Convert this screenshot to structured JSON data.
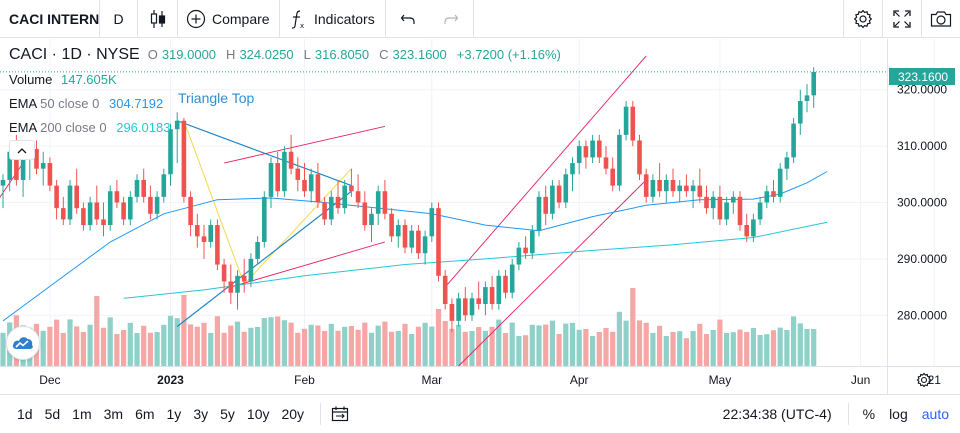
{
  "toolbar": {
    "symbol": "CACI INTERN",
    "interval": "D",
    "compare_label": "Compare",
    "indicators_label": "Indicators"
  },
  "legend": {
    "title": "CACI · 1D · NYSE",
    "open_k": "O",
    "open": "319.0000",
    "high_k": "H",
    "high": "324.0250",
    "low_k": "L",
    "low": "316.8050",
    "close_k": "C",
    "close": "323.1600",
    "change": "+3.7200 (+1.16%)",
    "volume_name": "Volume",
    "volume_value": "147.605K",
    "ema50_name": "EMA",
    "ema50_params": "50 close 0",
    "ema50_value": "304.7192",
    "ema200_name": "EMA",
    "ema200_params": "200 close 0",
    "ema200_value": "296.0183"
  },
  "pattern_label": "Triangle Top",
  "last_price_tag": "323.1600",
  "colors": {
    "up": "#26a69a",
    "down": "#ef5350",
    "vol_up": "#8fd1c9",
    "vol_down": "#f5a7a5",
    "ema50": "#2196f3",
    "ema200": "#26c6da",
    "pattern": "#1e88c9",
    "channel": "#e91e63",
    "triangle_fill": "#f5d94a"
  },
  "bottombar": {
    "ranges": [
      "1d",
      "5d",
      "1m",
      "3m",
      "6m",
      "1y",
      "3y",
      "5y",
      "10y",
      "20y"
    ],
    "time": "22:34:38 (UTC-4)",
    "percent": "%",
    "log": "log",
    "auto": "auto"
  },
  "chart_data": {
    "type": "candlestick",
    "y_axis": {
      "ticks": [
        280,
        290,
        300,
        310,
        320
      ],
      "tick_labels": [
        "280.0000",
        "290.0000",
        "300.0000",
        "310.0000",
        "320.0000"
      ],
      "ylim": [
        271,
        329
      ]
    },
    "x_axis": {
      "tick_labels": [
        "Dec",
        "2023",
        "Feb",
        "Mar",
        "Apr",
        "May",
        "Jun",
        "21"
      ]
    },
    "candles": [
      [
        303.0,
        305.0,
        299.0,
        304.0
      ],
      [
        304.0,
        310.0,
        302.0,
        309.0
      ],
      [
        309.0,
        312.0,
        303.0,
        304.0
      ],
      [
        304.0,
        309.0,
        301.0,
        308.0
      ],
      [
        308.0,
        310.0,
        304.0,
        309.5
      ],
      [
        309.5,
        311.0,
        305.0,
        306.0
      ],
      [
        306.0,
        309.0,
        303.0,
        307.0
      ],
      [
        307.0,
        308.0,
        302.0,
        303.0
      ],
      [
        303.0,
        304.0,
        297.0,
        299.0
      ],
      [
        299.0,
        301.0,
        296.0,
        297.0
      ],
      [
        297.0,
        304.0,
        296.0,
        303.0
      ],
      [
        303.0,
        306.0,
        298.0,
        299.0
      ],
      [
        299.0,
        300.0,
        295.0,
        296.0
      ],
      [
        296.0,
        301.0,
        295.0,
        300.0
      ],
      [
        300.0,
        303.0,
        296.0,
        297.0
      ],
      [
        297.0,
        300.0,
        294.0,
        296.0
      ],
      [
        296.0,
        303.0,
        295.0,
        302.0
      ],
      [
        302.0,
        304.0,
        299.0,
        300.0
      ],
      [
        300.0,
        301.0,
        296.0,
        297.0
      ],
      [
        297.0,
        302.0,
        296.0,
        301.0
      ],
      [
        301.0,
        305.0,
        300.0,
        304.0
      ],
      [
        304.0,
        306.0,
        300.0,
        301.0
      ],
      [
        301.0,
        303.0,
        297.0,
        298.0
      ],
      [
        298.0,
        302.0,
        297.0,
        301.0
      ],
      [
        301.0,
        306.0,
        300.0,
        305.0
      ],
      [
        305.0,
        314.0,
        303.0,
        313.0
      ],
      [
        313.0,
        316.0,
        307.0,
        314.5
      ],
      [
        314.5,
        315.0,
        300.0,
        301.0
      ],
      [
        301.0,
        302.0,
        294.0,
        296.0
      ],
      [
        296.0,
        298.0,
        292.0,
        294.0
      ],
      [
        294.0,
        296.0,
        290.0,
        293.0
      ],
      [
        293.0,
        297.0,
        292.0,
        296.0
      ],
      [
        296.0,
        297.0,
        288.0,
        289.0
      ],
      [
        289.0,
        290.0,
        284.0,
        286.0
      ],
      [
        286.0,
        289.0,
        282.0,
        284.0
      ],
      [
        284.0,
        288.0,
        281.0,
        287.0
      ],
      [
        287.0,
        290.0,
        284.0,
        286.0
      ],
      [
        286.0,
        291.0,
        285.0,
        290.0
      ],
      [
        290.0,
        294.0,
        289.0,
        293.0
      ],
      [
        293.0,
        302.0,
        292.0,
        301.0
      ],
      [
        301.0,
        308.0,
        299.0,
        307.0
      ],
      [
        307.0,
        309.0,
        301.0,
        302.0
      ],
      [
        302.0,
        310.0,
        301.0,
        309.0
      ],
      [
        309.0,
        312.0,
        305.0,
        306.0
      ],
      [
        306.0,
        308.0,
        302.0,
        304.0
      ],
      [
        304.0,
        307.0,
        301.0,
        302.0
      ],
      [
        302.0,
        306.0,
        300.0,
        305.0
      ],
      [
        305.0,
        307.0,
        299.0,
        300.0
      ],
      [
        300.0,
        301.0,
        296.0,
        297.0
      ],
      [
        297.0,
        302.0,
        296.0,
        301.0
      ],
      [
        301.0,
        304.0,
        298.0,
        299.0
      ],
      [
        299.0,
        304.0,
        298.0,
        303.0
      ],
      [
        303.0,
        306.0,
        301.0,
        302.0
      ],
      [
        302.0,
        305.0,
        299.0,
        300.0
      ],
      [
        300.0,
        302.0,
        295.0,
        296.0
      ],
      [
        296.0,
        299.0,
        293.0,
        298.0
      ],
      [
        298.0,
        303.0,
        296.0,
        302.0
      ],
      [
        302.0,
        304.0,
        297.0,
        298.0
      ],
      [
        298.0,
        299.0,
        293.0,
        294.0
      ],
      [
        294.0,
        297.0,
        292.0,
        296.0
      ],
      [
        296.0,
        297.0,
        291.0,
        292.0
      ],
      [
        292.0,
        296.0,
        291.0,
        295.0
      ],
      [
        295.0,
        296.0,
        290.0,
        291.0
      ],
      [
        291.0,
        295.0,
        289.0,
        294.0
      ],
      [
        294.0,
        300.0,
        293.0,
        299.0
      ],
      [
        299.0,
        300.0,
        286.0,
        287.0
      ],
      [
        287.0,
        288.0,
        281.0,
        282.0
      ],
      [
        282.0,
        283.0,
        277.0,
        279.0
      ],
      [
        279.0,
        284.0,
        278.0,
        283.0
      ],
      [
        283.0,
        285.0,
        279.0,
        280.0
      ],
      [
        280.0,
        284.0,
        279.0,
        283.0
      ],
      [
        283.0,
        286.0,
        281.0,
        282.0
      ],
      [
        282.0,
        286.0,
        280.0,
        285.0
      ],
      [
        285.0,
        287.0,
        281.0,
        282.0
      ],
      [
        282.0,
        288.0,
        281.0,
        287.0
      ],
      [
        287.0,
        288.0,
        283.0,
        284.0
      ],
      [
        284.0,
        290.0,
        283.0,
        289.0
      ],
      [
        289.0,
        293.0,
        288.0,
        292.0
      ],
      [
        292.0,
        294.0,
        290.0,
        291.0
      ],
      [
        291.0,
        296.0,
        290.0,
        295.0
      ],
      [
        295.0,
        302.0,
        294.0,
        301.0
      ],
      [
        301.0,
        303.0,
        296.0,
        298.0
      ],
      [
        298.0,
        304.0,
        297.0,
        303.0
      ],
      [
        303.0,
        304.0,
        299.0,
        300.0
      ],
      [
        300.0,
        306.0,
        299.0,
        305.0
      ],
      [
        305.0,
        308.0,
        302.0,
        307.0
      ],
      [
        307.0,
        311.0,
        305.0,
        310.0
      ],
      [
        310.0,
        311.0,
        306.0,
        308.0
      ],
      [
        308.0,
        312.0,
        307.0,
        311.0
      ],
      [
        311.0,
        312.0,
        307.0,
        308.0
      ],
      [
        308.0,
        310.0,
        305.0,
        306.0
      ],
      [
        306.0,
        308.0,
        302.0,
        303.0
      ],
      [
        303.0,
        313.0,
        302.0,
        312.0
      ],
      [
        312.0,
        318.0,
        311.0,
        317.0
      ],
      [
        317.0,
        318.0,
        310.0,
        311.0
      ],
      [
        311.0,
        312.0,
        304.0,
        305.0
      ],
      [
        305.0,
        306.0,
        300.0,
        301.0
      ],
      [
        301.0,
        305.0,
        300.0,
        304.0
      ],
      [
        304.0,
        307.0,
        301.0,
        302.0
      ],
      [
        302.0,
        305.0,
        300.0,
        304.0
      ],
      [
        304.0,
        306.0,
        301.0,
        302.0
      ],
      [
        302.0,
        304.0,
        300.0,
        303.0
      ],
      [
        303.0,
        305.0,
        301.0,
        302.0
      ],
      [
        302.0,
        304.0,
        299.0,
        303.0
      ],
      [
        303.0,
        306.0,
        300.0,
        301.0
      ],
      [
        301.0,
        303.0,
        298.0,
        299.0
      ],
      [
        299.0,
        302.0,
        297.0,
        301.0
      ],
      [
        301.0,
        303.0,
        296.0,
        297.0
      ],
      [
        297.0,
        301.0,
        296.0,
        300.0
      ],
      [
        300.0,
        302.0,
        298.0,
        301.0
      ],
      [
        301.0,
        302.0,
        295.0,
        296.0
      ],
      [
        296.0,
        298.0,
        293.0,
        294.0
      ],
      [
        294.0,
        298.0,
        293.0,
        297.0
      ],
      [
        297.0,
        301.0,
        296.0,
        300.0
      ],
      [
        300.0,
        303.0,
        299.0,
        302.0
      ],
      [
        302.0,
        304.0,
        300.0,
        301.0
      ],
      [
        301.0,
        307.0,
        300.0,
        306.0
      ],
      [
        306.0,
        309.0,
        304.0,
        308.0
      ],
      [
        308.0,
        315.0,
        307.0,
        314.0
      ],
      [
        314.0,
        320.0,
        312.0,
        318.0
      ],
      [
        318.0,
        321.0,
        316.0,
        319.0
      ],
      [
        319.0,
        324.0,
        316.8,
        323.16
      ]
    ],
    "ema50": [
      [
        0,
        279
      ],
      [
        8,
        286
      ],
      [
        16,
        293
      ],
      [
        24,
        298
      ],
      [
        32,
        300.5
      ],
      [
        40,
        300.8
      ],
      [
        48,
        300
      ],
      [
        56,
        299
      ],
      [
        64,
        298
      ],
      [
        72,
        296
      ],
      [
        80,
        295
      ],
      [
        88,
        297.5
      ],
      [
        96,
        299.5
      ],
      [
        104,
        300.5
      ],
      [
        112,
        300.6
      ],
      [
        116,
        301.5
      ],
      [
        120,
        303.5
      ],
      [
        123,
        305.5
      ]
    ],
    "ema200": [
      [
        18,
        283
      ],
      [
        30,
        284.5
      ],
      [
        45,
        287
      ],
      [
        60,
        289
      ],
      [
        72,
        290
      ],
      [
        88,
        291.5
      ],
      [
        100,
        292.5
      ],
      [
        112,
        293.8
      ],
      [
        123,
        296.5
      ]
    ]
  }
}
